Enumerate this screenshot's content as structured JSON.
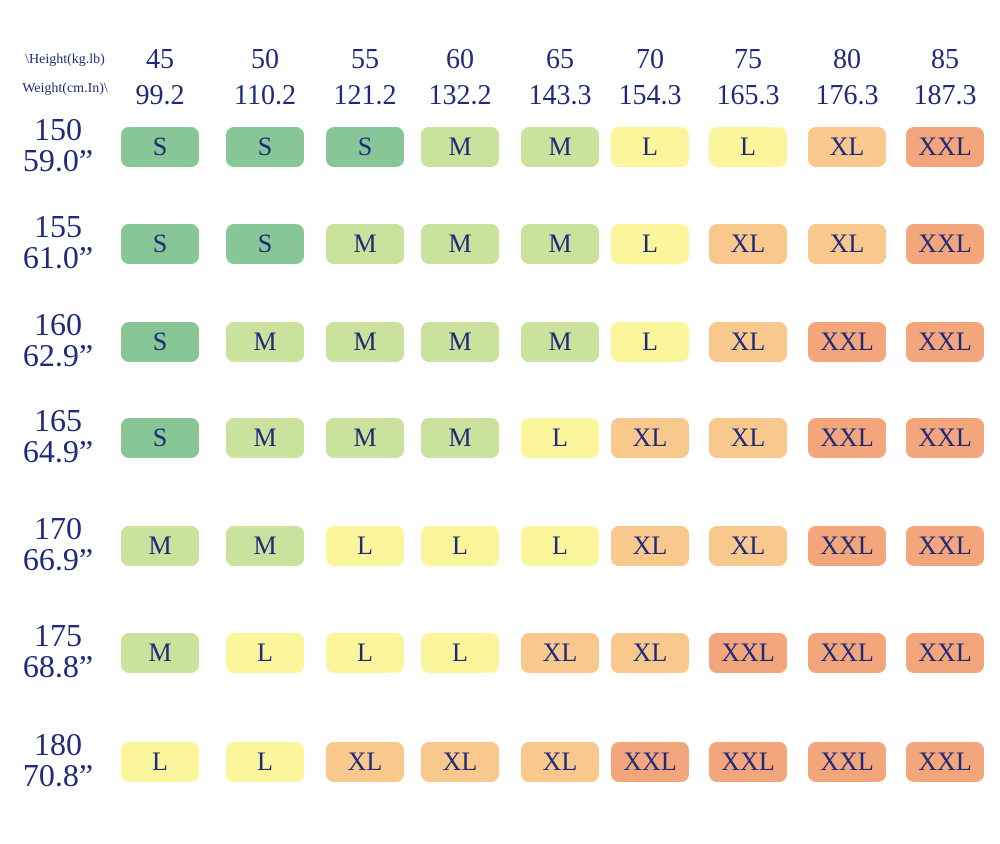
{
  "header": {
    "corner_top": "\\Height(kg.lb)",
    "corner_bottom": "Weight(cm.In)\\",
    "columns": [
      {
        "kg": "45",
        "lb": "99.2"
      },
      {
        "kg": "50",
        "lb": "110.2"
      },
      {
        "kg": "55",
        "lb": "121.2"
      },
      {
        "kg": "60",
        "lb": "132.2"
      },
      {
        "kg": "65",
        "lb": "143.3"
      },
      {
        "kg": "70",
        "lb": "154.3"
      },
      {
        "kg": "75",
        "lb": "165.3"
      },
      {
        "kg": "80",
        "lb": "176.3"
      },
      {
        "kg": "85",
        "lb": "187.3"
      }
    ]
  },
  "table": {
    "rows": [
      {
        "cm": "150",
        "in": "59.0”",
        "cells": [
          "S",
          "S",
          "S",
          "M",
          "M",
          "L",
          "L",
          "XL",
          "XXL"
        ]
      },
      {
        "cm": "155",
        "in": "61.0”",
        "cells": [
          "S",
          "S",
          "M",
          "M",
          "M",
          "L",
          "XL",
          "XL",
          "XXL"
        ]
      },
      {
        "cm": "160",
        "in": "62.9”",
        "cells": [
          "S",
          "M",
          "M",
          "M",
          "M",
          "L",
          "XL",
          "XXL",
          "XXL"
        ]
      },
      {
        "cm": "165",
        "in": "64.9”",
        "cells": [
          "S",
          "M",
          "M",
          "M",
          "L",
          "XL",
          "XL",
          "XXL",
          "XXL"
        ]
      },
      {
        "cm": "170",
        "in": "66.9”",
        "cells": [
          "M",
          "M",
          "L",
          "L",
          "L",
          "XL",
          "XL",
          "XXL",
          "XXL"
        ]
      },
      {
        "cm": "175",
        "in": "68.8”",
        "cells": [
          "M",
          "L",
          "L",
          "L",
          "XL",
          "XL",
          "XXL",
          "XXL",
          "XXL"
        ]
      },
      {
        "cm": "180",
        "in": "70.8”",
        "cells": [
          "L",
          "L",
          "XL",
          "XL",
          "XL",
          "XXL",
          "XXL",
          "XXL",
          "XXL"
        ]
      }
    ],
    "colors": {
      "S": "#86c697",
      "M": "#c9e29c",
      "L": "#fbf69c",
      "XL": "#f8c88c",
      "XXL": "#f3a67c"
    }
  }
}
